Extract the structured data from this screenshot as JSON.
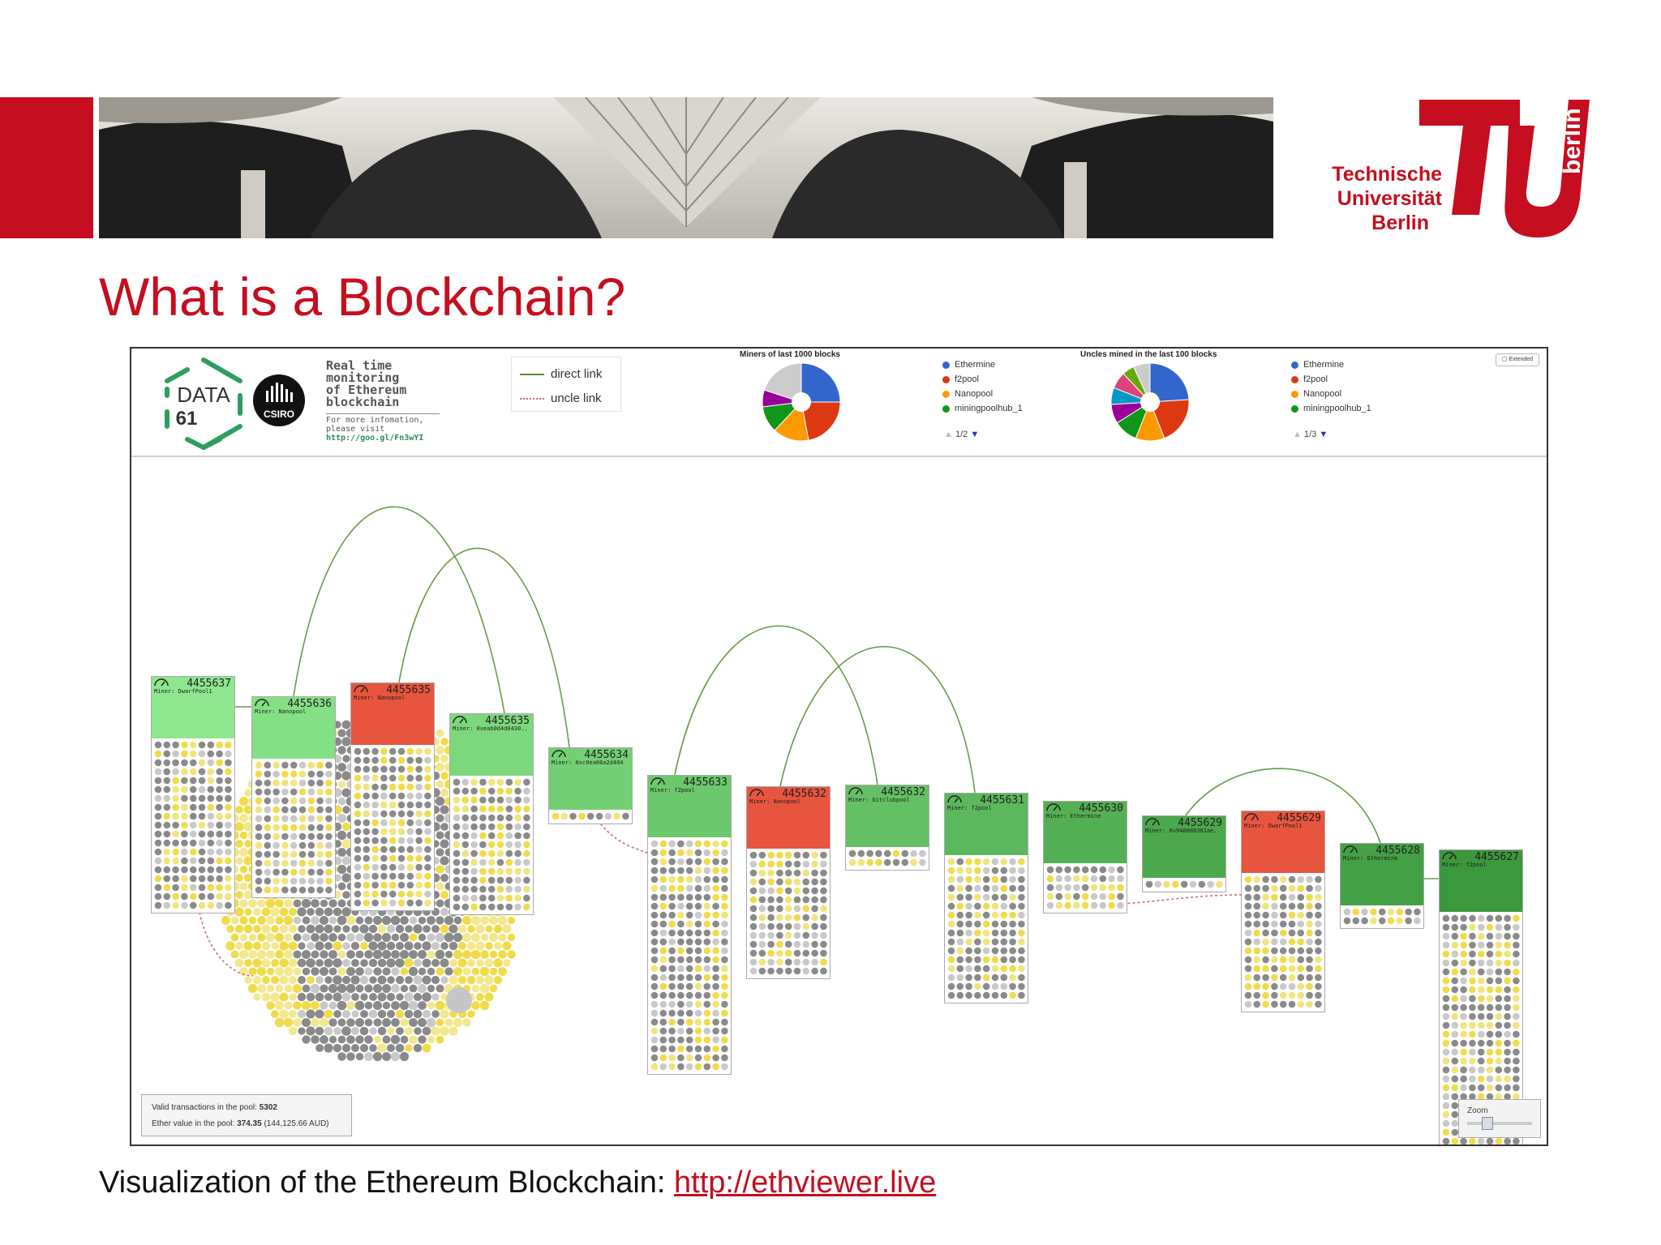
{
  "slide": {
    "title": "What is a Blockchain?",
    "caption_text": "Visualization of the Ethereum Blockchain: ",
    "caption_link": "http://ethviewer.live"
  },
  "logo": {
    "line1": "Technische",
    "line2": "Universität",
    "line3": "Berlin",
    "side": "berlin",
    "color": "#c50e1f"
  },
  "ethviewer": {
    "brand": {
      "data61_line1": "DATA",
      "data61_line2": "61",
      "csiro": "CSIRO",
      "tagline_lines": [
        "Real time",
        "monitoring",
        "of Ethereum",
        "blockchain"
      ],
      "info_lines": [
        "For more infomation,",
        "please visit"
      ],
      "info_url": "http://goo.gl/Fn3wYI"
    },
    "link_legend": {
      "direct": "direct link",
      "uncle": "uncle link"
    },
    "pies": [
      {
        "title": "Miners of last 1000 blocks",
        "legend": [
          {
            "label": "Ethermine",
            "color": "#3366cc"
          },
          {
            "label": "f2pool",
            "color": "#dc3912"
          },
          {
            "label": "Nanopool",
            "color": "#ff9900"
          },
          {
            "label": "miningpoolhub_1",
            "color": "#109618"
          }
        ],
        "pager": "1/2",
        "slices": [
          {
            "value": 25,
            "color": "#3366cc"
          },
          {
            "value": 22,
            "color": "#dc3912"
          },
          {
            "value": 15,
            "color": "#ff9900"
          },
          {
            "value": 11,
            "color": "#109618"
          },
          {
            "value": 7,
            "color": "#990099"
          },
          {
            "value": 20,
            "color": "#cccccc"
          }
        ]
      },
      {
        "title": "Uncles mined in the last 100 blocks",
        "legend": [
          {
            "label": "Ethermine",
            "color": "#3366cc"
          },
          {
            "label": "f2pool",
            "color": "#dc3912"
          },
          {
            "label": "Nanopool",
            "color": "#ff9900"
          },
          {
            "label": "miningpoolhub_1",
            "color": "#109618"
          }
        ],
        "pager": "1/3",
        "slices": [
          {
            "value": 24,
            "color": "#3366cc"
          },
          {
            "value": 20,
            "color": "#dc3912"
          },
          {
            "value": 12,
            "color": "#ff9900"
          },
          {
            "value": 10,
            "color": "#109618"
          },
          {
            "value": 8,
            "color": "#990099"
          },
          {
            "value": 7,
            "color": "#0099c6"
          },
          {
            "value": 7,
            "color": "#dd4477"
          },
          {
            "value": 5,
            "color": "#66aa00"
          },
          {
            "value": 7,
            "color": "#cccccc"
          }
        ]
      }
    ],
    "extended_button": "Extended",
    "blocks": [
      {
        "num": "4455637",
        "miner": "DwarfPool1",
        "color": "#8ee68e"
      },
      {
        "num": "4455636",
        "miner": "Nanopool",
        "color": "#84e084"
      },
      {
        "num": "4455635",
        "miner": "Nanopool",
        "color": "#e8553f"
      },
      {
        "num": "4455635",
        "miner": "0xeab0d4d0430..",
        "color": "#7cd87c"
      },
      {
        "num": "4455634",
        "miner": "0xc0ea08a2d404",
        "color": "#74d074"
      },
      {
        "num": "4455633",
        "miner": "f2pool",
        "color": "#6cc86c"
      },
      {
        "num": "4455632",
        "miner": "Nanopool",
        "color": "#e8553f"
      },
      {
        "num": "4455632",
        "miner": "bitclubpool",
        "color": "#64c064"
      },
      {
        "num": "4455631",
        "miner": "f2pool",
        "color": "#5cb85c"
      },
      {
        "num": "4455630",
        "miner": "Ethermine",
        "color": "#54b054"
      },
      {
        "num": "4455629",
        "miner": "0x9480d0301ae..",
        "color": "#4ca84c"
      },
      {
        "num": "4455629",
        "miner": "DwarfPool1",
        "color": "#e8553f"
      },
      {
        "num": "4455628",
        "miner": "Ethermine",
        "color": "#44a044"
      },
      {
        "num": "4455627",
        "miner": "f2pool",
        "color": "#3c983c"
      }
    ],
    "pool": {
      "valid_label": "Valid transactions in the pool: ",
      "valid_value": "5302",
      "ether_label": "Ether value in the pool: ",
      "ether_value": "374.35",
      "ether_aud": " (144,125.66 AUD)"
    },
    "zoom_label": "Zoom"
  }
}
